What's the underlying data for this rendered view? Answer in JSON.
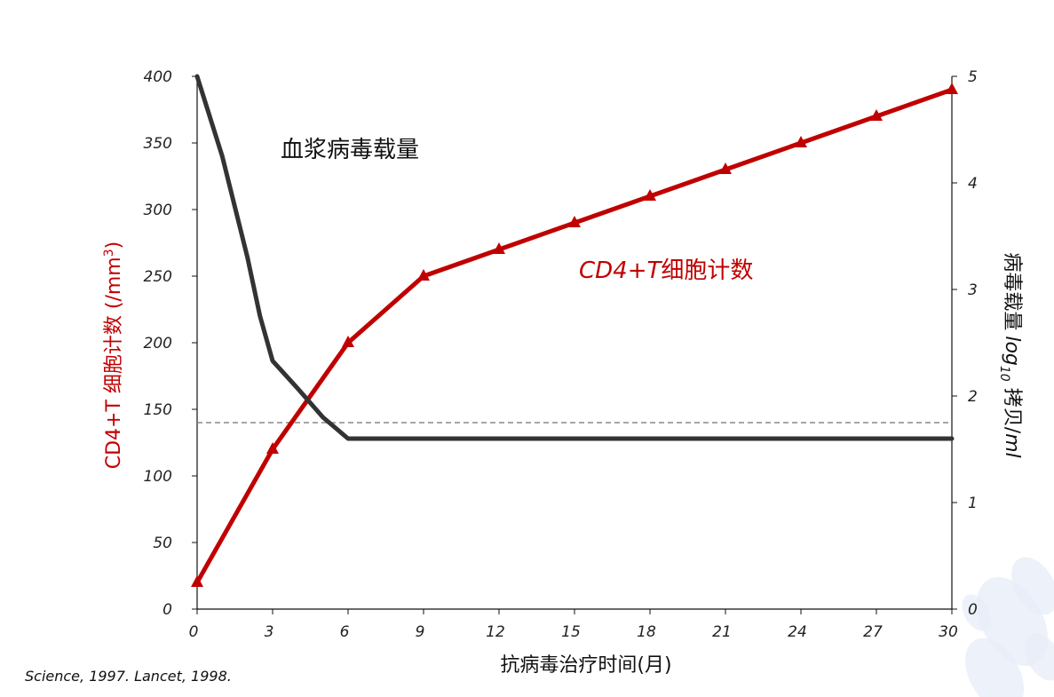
{
  "chart_data": {
    "type": "line",
    "x": [
      0,
      3,
      6,
      9,
      12,
      15,
      18,
      21,
      24,
      27,
      30
    ],
    "xlabel": "抗病毒治疗时间(月)",
    "x_ticks": [
      "0",
      "3",
      "6",
      "9",
      "12",
      "15",
      "18",
      "21",
      "24",
      "27",
      "30"
    ],
    "xlim": [
      0,
      30
    ],
    "y_left": {
      "label_colored": "CD4+T 细胞计数",
      "label_unit_prefix": " (/mm",
      "label_unit_sup": "3",
      "label_unit_suffix": ")",
      "ticks": [
        "0",
        "50",
        "100",
        "150",
        "200",
        "250",
        "300",
        "350",
        "400"
      ],
      "lim": [
        0,
        400
      ]
    },
    "y_right": {
      "label_part1": "病毒载量",
      "label_log": "log",
      "label_sub": "10",
      "label_part2": " 拷贝/",
      "label_unit": "ml",
      "ticks": [
        "0",
        "1",
        "2",
        "3",
        "4",
        "5"
      ],
      "lim": [
        0,
        5
      ]
    },
    "series": [
      {
        "name": "CD4+T细胞计数",
        "axis": "left",
        "color": "#c00000",
        "marker": "triangle",
        "x": [
          0,
          3,
          6,
          9,
          12,
          15,
          18,
          21,
          24,
          27,
          30
        ],
        "values": [
          20,
          120,
          200,
          250,
          270,
          290,
          310,
          330,
          350,
          370,
          390
        ]
      },
      {
        "name": "血浆病毒载量",
        "axis": "right",
        "color": "#333333",
        "marker": "none",
        "x": [
          0,
          1,
          2,
          2.5,
          3,
          4,
          5,
          6,
          9,
          12,
          15,
          18,
          21,
          24,
          27,
          30
        ],
        "values": [
          5.0,
          4.25,
          3.3,
          2.75,
          2.33,
          2.07,
          1.8,
          1.6,
          1.6,
          1.6,
          1.6,
          1.6,
          1.6,
          1.6,
          1.6,
          1.6
        ]
      }
    ],
    "reference_line": {
      "axis": "left",
      "value": 140,
      "style": "dashed",
      "color": "#888888"
    },
    "annotations": {
      "viral_load_label": "血浆病毒载量",
      "cd4_label_italic": "CD4+T",
      "cd4_label_rest": "细胞计数"
    },
    "grid": false,
    "legend": "none"
  },
  "citation": "Science, 1997.   Lancet, 1998."
}
